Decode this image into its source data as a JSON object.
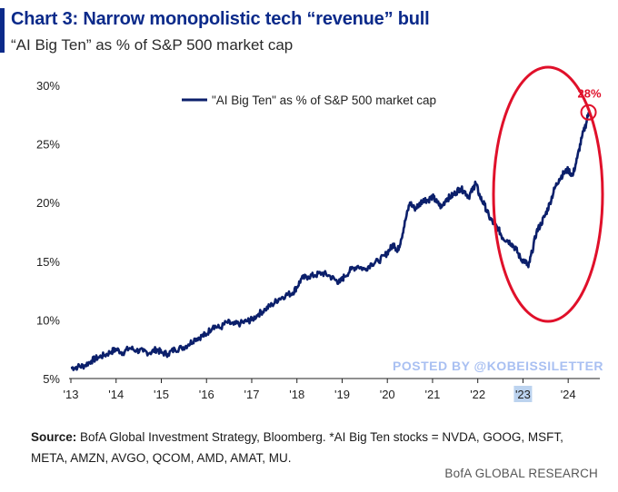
{
  "header": {
    "title": "Chart 3: Narrow monopolistic tech “revenue” bull",
    "subtitle": "“AI Big Ten” as % of S&P 500 market cap"
  },
  "colors": {
    "series": "#0b1f6b",
    "title": "#0b2a8a",
    "annotation": "#e0102a",
    "watermark": "#a9c0f2"
  },
  "watermark": "POSTED BY @KOBEISSILETTER",
  "footer": {
    "source_label": "Source:",
    "source_text": " BofA Global Investment Strategy, Bloomberg. *AI Big Ten stocks = NVDA, GOOG, MSFT, META, AMZN, AVGO, QCOM, AMD, AMAT, MU.",
    "brand": "BofA GLOBAL RESEARCH"
  },
  "chart_data": {
    "type": "line",
    "title": "Chart 3: Narrow monopolistic tech “revenue” bull",
    "subtitle": "“AI Big Ten” as % of S&P 500 market cap",
    "xlabel": "",
    "ylabel": "",
    "xlim": [
      2013,
      2024.7
    ],
    "ylim": [
      5,
      30
    ],
    "y_ticks": [
      5,
      10,
      15,
      20,
      25,
      30
    ],
    "y_tick_labels": [
      "5%",
      "10%",
      "15%",
      "20%",
      "25%",
      "30%"
    ],
    "x_ticks": [
      2013,
      2014,
      2015,
      2016,
      2017,
      2018,
      2019,
      2020,
      2021,
      2022,
      2023,
      2024
    ],
    "x_tick_labels": [
      "'13",
      "'14",
      "'15",
      "'16",
      "'17",
      "'18",
      "'19",
      "'20",
      "'21",
      "'22",
      "'23",
      "'24"
    ],
    "highlighted_tick": "'23",
    "grid": false,
    "legend": {
      "position": "top-center",
      "entries": [
        "\"AI Big Ten\" as % of S&P 500 market cap"
      ]
    },
    "series": [
      {
        "name": "\"AI Big Ten\" as % of S&P 500 market cap",
        "x": [
          2013.0,
          2013.15,
          2013.3,
          2013.45,
          2013.6,
          2013.75,
          2013.9,
          2014.0,
          2014.15,
          2014.3,
          2014.45,
          2014.6,
          2014.75,
          2014.9,
          2015.0,
          2015.15,
          2015.3,
          2015.45,
          2015.6,
          2015.75,
          2015.9,
          2016.0,
          2016.15,
          2016.3,
          2016.45,
          2016.6,
          2016.75,
          2016.9,
          2017.0,
          2017.15,
          2017.3,
          2017.45,
          2017.6,
          2017.75,
          2017.9,
          2018.0,
          2018.1,
          2018.25,
          2018.4,
          2018.55,
          2018.7,
          2018.85,
          2018.95,
          2019.05,
          2019.2,
          2019.35,
          2019.5,
          2019.65,
          2019.8,
          2019.95,
          2020.05,
          2020.15,
          2020.22,
          2020.3,
          2020.4,
          2020.5,
          2020.6,
          2020.7,
          2020.8,
          2020.9,
          2021.0,
          2021.1,
          2021.2,
          2021.3,
          2021.4,
          2021.5,
          2021.6,
          2021.7,
          2021.8,
          2021.9,
          2021.95,
          2022.05,
          2022.15,
          2022.25,
          2022.35,
          2022.45,
          2022.55,
          2022.65,
          2022.75,
          2022.85,
          2022.95,
          2023.05,
          2023.12,
          2023.2,
          2023.3,
          2023.4,
          2023.5,
          2023.6,
          2023.7,
          2023.8,
          2023.9,
          2024.0,
          2024.1,
          2024.2,
          2024.3,
          2024.4,
          2024.45
        ],
        "values": [
          5.9,
          6.0,
          6.1,
          6.5,
          6.8,
          7.0,
          7.3,
          7.5,
          7.2,
          7.6,
          7.4,
          7.3,
          7.2,
          7.5,
          7.2,
          7.1,
          7.5,
          7.6,
          7.9,
          8.4,
          8.6,
          8.8,
          9.5,
          9.3,
          9.8,
          9.6,
          9.7,
          9.9,
          10.0,
          10.5,
          10.9,
          11.3,
          11.8,
          12.1,
          12.3,
          12.8,
          13.5,
          13.7,
          13.8,
          14.0,
          13.8,
          13.4,
          13.2,
          13.7,
          14.3,
          14.6,
          14.3,
          14.8,
          15.0,
          15.5,
          16.0,
          16.5,
          15.8,
          16.8,
          18.5,
          20.0,
          19.5,
          19.8,
          20.3,
          20.2,
          20.5,
          20.0,
          19.6,
          20.3,
          20.5,
          20.8,
          21.2,
          21.0,
          20.5,
          21.2,
          21.7,
          20.5,
          19.8,
          18.8,
          18.2,
          17.8,
          17.0,
          16.8,
          16.5,
          16.0,
          15.2,
          15.0,
          14.5,
          15.8,
          17.5,
          18.2,
          19.0,
          20.0,
          21.2,
          22.0,
          22.5,
          22.8,
          22.3,
          23.8,
          25.5,
          26.8,
          27.7
        ]
      }
    ],
    "annotations": [
      {
        "text": "28%",
        "x": 2024.45,
        "y": 27.7
      }
    ]
  }
}
